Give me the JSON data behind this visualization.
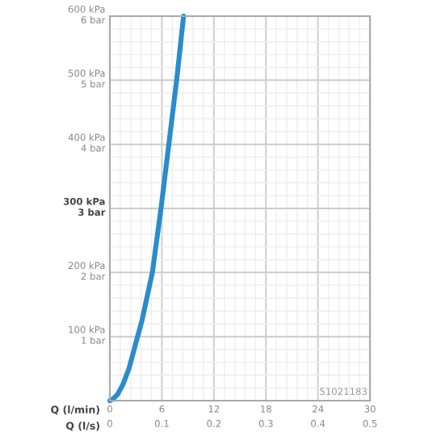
{
  "chart_data": {
    "type": "line",
    "xlabel": "Q (l/min)",
    "x2label": "Q (l/s)",
    "x": [
      0,
      0.4,
      0.9,
      1.5,
      2.2,
      2.7,
      3.2,
      3.7,
      4.1,
      4.5,
      4.9,
      5.4,
      5.9,
      6.8,
      7.7,
      8.5
    ],
    "series": [
      {
        "color": "#2a8ccc",
        "values": [
          0,
          3,
          10,
          25,
          50,
          75,
          100,
          125,
          150,
          175,
          200,
          250,
          300,
          400,
          500,
          600
        ]
      }
    ],
    "xlim": [
      0,
      30
    ],
    "xticks": [
      0,
      6,
      12,
      18,
      24,
      30
    ],
    "x2lim": [
      0,
      0.5
    ],
    "x2ticks": [
      0,
      0.1,
      0.2,
      0.3,
      0.4,
      0.5
    ],
    "ylim": [
      0,
      600
    ],
    "yticks": [
      {
        "value": 100,
        "label": "100 kPa"
      },
      {
        "value": 200,
        "label": "200 kPa"
      },
      {
        "value": 300,
        "label": "300 kPa"
      },
      {
        "value": 400,
        "label": "400 kPa"
      },
      {
        "value": 500,
        "label": "500 kPa"
      },
      {
        "value": 600,
        "label": "600 kPa"
      }
    ],
    "y2lim": [
      0,
      6
    ],
    "y2ticks": [
      {
        "value": 1,
        "label": "1 bar"
      },
      {
        "value": 2,
        "label": "2 bar"
      },
      {
        "value": 3,
        "label": "3 bar"
      },
      {
        "value": 4,
        "label": "4 bar"
      },
      {
        "value": 5,
        "label": "5 bar"
      },
      {
        "value": 6,
        "label": "6 bar"
      }
    ],
    "grid": true,
    "marker": "none",
    "line_style": "solid",
    "annotations": [
      "51021183"
    ]
  }
}
